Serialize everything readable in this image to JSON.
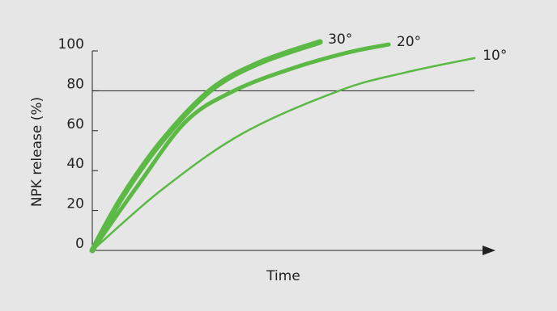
{
  "chart_data": {
    "type": "line",
    "x_label": "Time",
    "y_label": "NPK release (%)",
    "xlim": [
      0,
      100
    ],
    "ylim": [
      0,
      100
    ],
    "yticks": [
      0,
      20,
      40,
      60,
      80,
      100
    ],
    "hline": 80,
    "series": [
      {
        "name": "30°",
        "color": "#5cb946",
        "width": 7,
        "x": [
          0,
          7.3,
          17.3,
          29.4,
          41.5,
          56.7
        ],
        "values": [
          0,
          26.3,
          54.7,
          80.2,
          93.9,
          104.5
        ]
      },
      {
        "name": "20°",
        "color": "#5cb946",
        "width": 5,
        "x": [
          0,
          11.3,
          23.4,
          35.5,
          49.6,
          63.7,
          73.8
        ],
        "values": [
          0,
          32.4,
          64.8,
          80.2,
          91.1,
          99.2,
          103.2
        ]
      },
      {
        "name": "10°",
        "color": "#5cb946",
        "width": 2.5,
        "x": [
          0,
          17.3,
          37.5,
          61.7,
          77.8,
          95.2
        ],
        "values": [
          0,
          30.4,
          58.7,
          80.2,
          89.1,
          96.4
        ]
      }
    ]
  }
}
